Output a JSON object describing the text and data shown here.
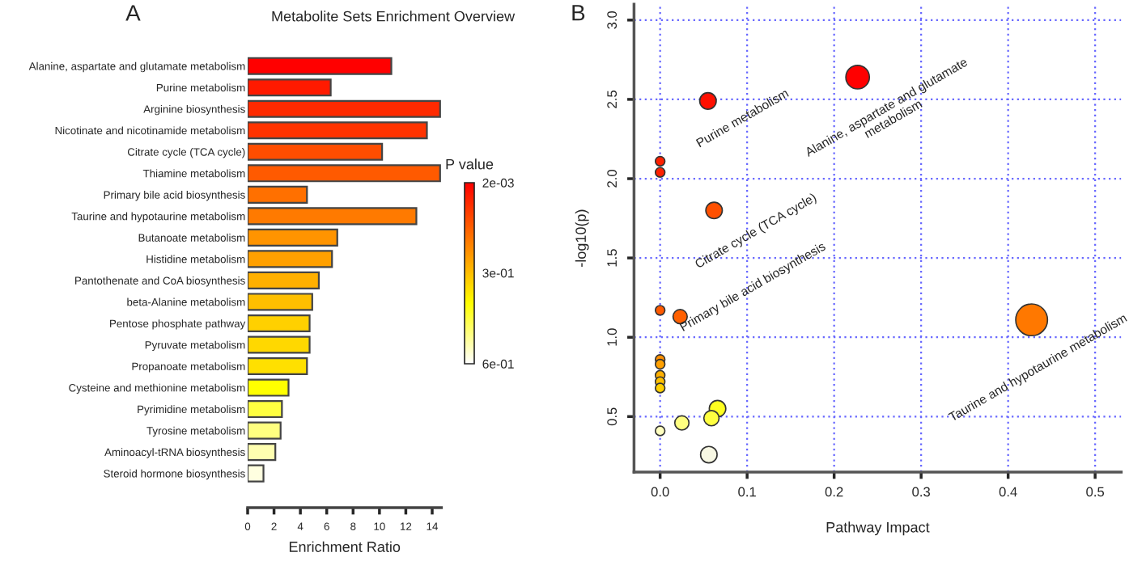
{
  "chart_data": [
    {
      "type": "bar",
      "orientation": "horizontal",
      "title": "Metabolite Sets Enrichment Overview",
      "xlabel": "Enrichment Ratio",
      "clabel": "P value",
      "annotations": [
        "A"
      ],
      "categories": [
        "Alanine, aspartate and glutamate metabolism",
        "Purine metabolism",
        "Arginine biosynthesis",
        "Nicotinate and nicotinamide metabolism",
        "Citrate cycle (TCA cycle)",
        "Thiamine metabolism",
        "Primary bile acid biosynthesis",
        "Taurine and hypotaurine metabolism",
        "Butanoate metabolism",
        "Histidine metabolism",
        "Pantothenate and CoA biosynthesis",
        "beta-Alanine metabolism",
        "Pentose phosphate pathway",
        "Pyruvate metabolism",
        "Propanoate metabolism",
        "Cysteine and methionine metabolism",
        "Pyrimidine metabolism",
        "Tyrosine metabolism",
        "Aminoacyl-tRNA biosynthesis",
        "Steroid hormone biosynthesis"
      ],
      "values": [
        10.9,
        6.3,
        14.6,
        13.6,
        10.2,
        14.6,
        4.5,
        12.8,
        6.8,
        6.4,
        5.4,
        4.9,
        4.7,
        4.7,
        4.5,
        3.1,
        2.6,
        2.5,
        2.1,
        1.2
      ],
      "colors": [
        "#ff0000",
        "#ff1a00",
        "#ff2a00",
        "#ff3300",
        "#ff4d00",
        "#ff5a00",
        "#ff7000",
        "#ff7a00",
        "#ff9400",
        "#ffa000",
        "#ffb000",
        "#ffbf00",
        "#ffd000",
        "#ffd800",
        "#ffe000",
        "#ffff00",
        "#ffff40",
        "#ffff80",
        "#ffffb0",
        "#ffffe0"
      ],
      "xlim": [
        0,
        14.7
      ],
      "xticks": [
        0,
        2,
        4,
        6,
        8,
        10,
        12,
        14
      ],
      "clim": [
        0.002,
        0.6
      ],
      "cticks": [
        {
          "value": 0.002,
          "label": "2e-03"
        },
        {
          "value": 0.3,
          "label": "3e-01"
        },
        {
          "value": 0.6,
          "label": "6e-01"
        }
      ]
    },
    {
      "type": "bubble",
      "xlabel": "Pathway Impact",
      "ylabel": "-log10(p)",
      "grid": true,
      "marker": "circle",
      "annotations": [
        "B",
        {
          "text": "Purine metabolism",
          "x": 0.055,
          "y": 2.49
        },
        {
          "text": "Alanine, aspartate and glutamate\nmetabolism",
          "x": 0.227,
          "y": 2.64
        },
        {
          "text": "Citrate cycle (TCA cycle)",
          "x": 0.062,
          "y": 1.8
        },
        {
          "text": "Primary bile acid biosynthesis",
          "x": 0.023,
          "y": 1.13
        },
        {
          "text": "Taurine and hypotaurine metabolism",
          "x": 0.427,
          "y": 1.11
        }
      ],
      "x": [
        0.227,
        0.055,
        0,
        0,
        0.062,
        0,
        0.023,
        0.427,
        0,
        0,
        0,
        0,
        0,
        0.066,
        0.059,
        0.025,
        0,
        0.056
      ],
      "values": [
        2.64,
        2.49,
        2.11,
        2.04,
        1.8,
        1.17,
        1.13,
        1.11,
        0.86,
        0.83,
        0.76,
        0.72,
        0.68,
        0.55,
        0.49,
        0.46,
        0.41,
        0.26
      ],
      "sizes": [
        0.55,
        0.27,
        0.09,
        0.09,
        0.27,
        0.09,
        0.2,
        1,
        0.09,
        0.09,
        0.09,
        0.09,
        0.09,
        0.27,
        0.23,
        0.2,
        0.09,
        0.27
      ],
      "colors": [
        "#ff0000",
        "#ff1000",
        "#ff2000",
        "#ff2000",
        "#ff5000",
        "#ff5a00",
        "#ff6000",
        "#ff7800",
        "#ff9000",
        "#ffa000",
        "#ffb000",
        "#ffc000",
        "#ffd000",
        "#ffff20",
        "#ffff40",
        "#ffff80",
        "#ffffc0",
        "#f8f8e4"
      ],
      "xlim": [
        -0.03,
        0.53
      ],
      "xticks": [
        {
          "value": 0,
          "label": "0.0"
        },
        {
          "value": 0.1,
          "label": "0.1"
        },
        {
          "value": 0.2,
          "label": "0.2"
        },
        {
          "value": 0.3,
          "label": "0.3"
        },
        {
          "value": 0.4,
          "label": "0.4"
        },
        {
          "value": 0.5,
          "label": "0.5"
        }
      ],
      "ylim": [
        0.15,
        3.1
      ],
      "yticks": [
        {
          "value": 0.5,
          "label": "0.5"
        },
        {
          "value": 1,
          "label": "1.0"
        },
        {
          "value": 1.5,
          "label": "1.5"
        },
        {
          "value": 2,
          "label": "2.0"
        },
        {
          "value": 2.5,
          "label": "2.5"
        },
        {
          "value": 3,
          "label": "3.0"
        }
      ]
    }
  ]
}
